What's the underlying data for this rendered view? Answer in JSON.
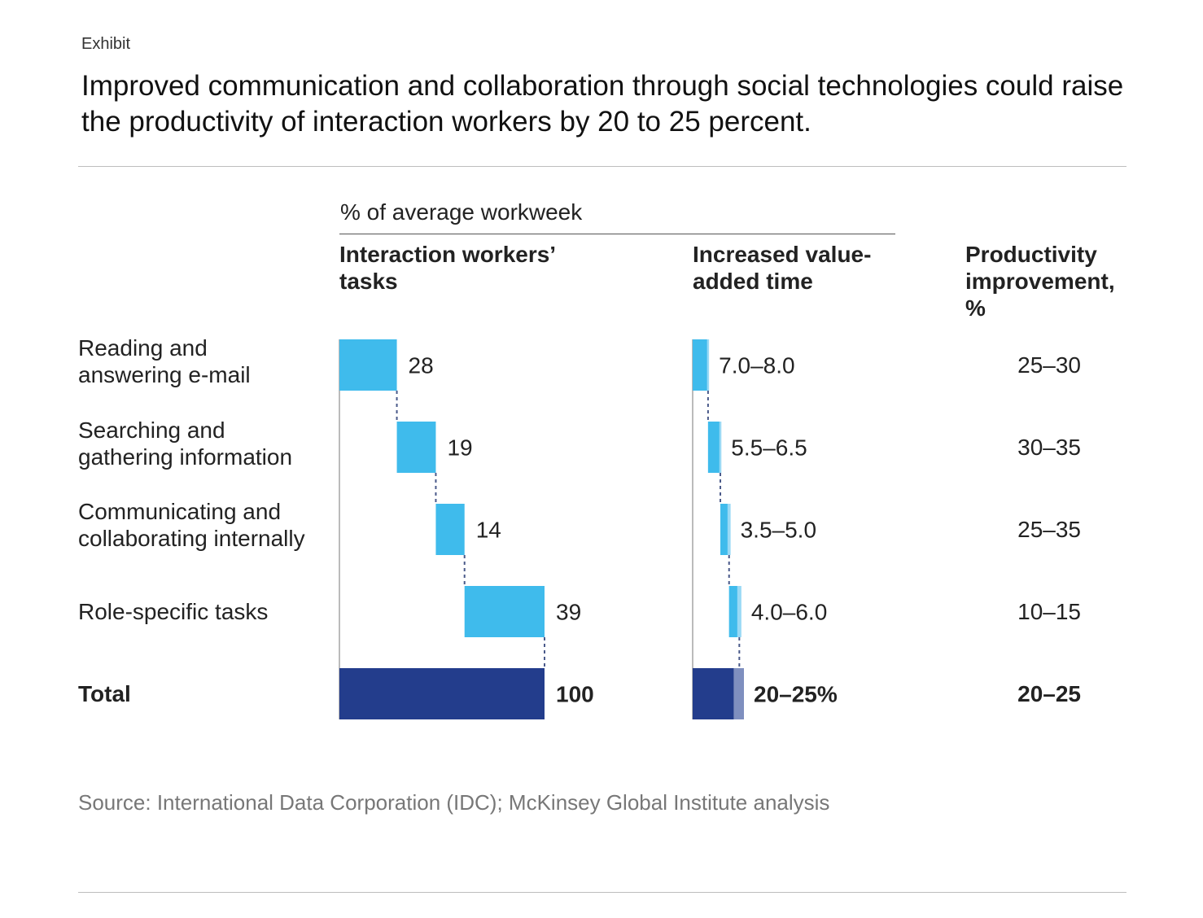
{
  "header": {
    "exhibit_label": "Exhibit",
    "title": "Improved communication and collaboration through social technologies could raise the productivity of interaction workers by 20 to 25 percent."
  },
  "subheader": "% of average workweek",
  "columns": {
    "tasks": "Interaction workers’ tasks",
    "time": "Increased value-added time",
    "productivity": "Productivity improvement, %"
  },
  "colors": {
    "task_bar": "#3fbbec",
    "total_bar": "#233d8c",
    "light_range": "#9ad9f5",
    "total_range": "#7f8fbf",
    "connector": "#4a5a8a"
  },
  "chart_data": {
    "type": "bar",
    "title": "Improved communication and collaboration through social technologies could raise the productivity of interaction workers by 20 to 25 percent.",
    "units": "% of average workweek",
    "categories": [
      "Reading and answering e-mail",
      "Searching and gathering information",
      "Communicating and collaborating internally",
      "Role-specific tasks",
      "Total"
    ],
    "tasks": {
      "name": "Interaction workers’ tasks",
      "chart": "waterfall",
      "values": [
        28,
        19,
        14,
        39,
        100
      ],
      "labels": [
        "28",
        "19",
        "14",
        "39",
        "100"
      ]
    },
    "value_added_time": {
      "name": "Increased value-added time",
      "chart": "waterfall-range",
      "low": [
        7.0,
        5.5,
        3.5,
        4.0,
        20
      ],
      "high": [
        8.0,
        6.5,
        5.0,
        6.0,
        25
      ],
      "labels": [
        "7.0–8.0",
        "5.5–6.5",
        "3.5–5.0",
        "4.0–6.0",
        "20–25%"
      ]
    },
    "productivity_improvement": {
      "name": "Productivity improvement, %",
      "labels": [
        "25–30",
        "30–35",
        "25–35",
        "10–15",
        "20–25"
      ]
    }
  },
  "rows": [
    {
      "label_line1": "Reading and",
      "label_line2": "answering e-mail"
    },
    {
      "label_line1": "Searching and",
      "label_line2": "gathering information"
    },
    {
      "label_line1": "Communicating and",
      "label_line2": "collaborating internally"
    },
    {
      "label_line1": "Role-specific tasks",
      "label_line2": ""
    },
    {
      "label_line1": "Total",
      "label_line2": ""
    }
  ],
  "source": "Source: International Data Corporation (IDC); McKinsey Global Institute analysis"
}
